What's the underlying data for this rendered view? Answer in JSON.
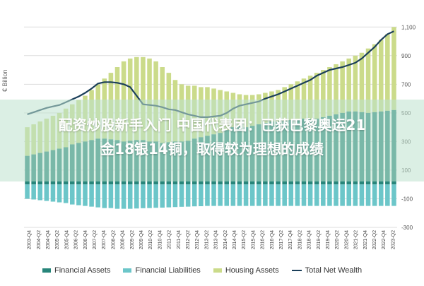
{
  "chart_data": {
    "type": "bar",
    "ylabel": "€ Billion",
    "ylim": [
      -300,
      1200
    ],
    "yticks": [
      -300,
      -100,
      100,
      300,
      500,
      700,
      900,
      1100
    ],
    "x_tick_labels": [
      "2003-Q4",
      "2004-Q2",
      "2004-Q4",
      "2005-Q2",
      "2005-Q4",
      "2006-Q2",
      "2006-Q4",
      "2007-Q2",
      "2007-Q4",
      "2008-Q2",
      "2008-Q4",
      "2009-Q2",
      "2009-Q4",
      "2010-Q2",
      "2010-Q4",
      "2011-Q2",
      "2011-Q4",
      "2012-Q2",
      "2012-Q4",
      "2013-Q2",
      "2013-Q4",
      "2014-Q2",
      "2014-Q4",
      "2015-Q2",
      "2015-Q4",
      "2016-Q2",
      "2016-Q4",
      "2017-Q2",
      "2017-Q4",
      "2018-Q2",
      "2018-Q4",
      "2019-Q2",
      "2019-Q4",
      "2020-Q2",
      "2020-Q4",
      "2021-Q2",
      "2021-Q4",
      "2022-Q2",
      "2022-Q4",
      "2023-Q2"
    ],
    "series": [
      {
        "name": "Financial Assets",
        "color": "#27857a",
        "values": [
          200,
          210,
          220,
          230,
          240,
          250,
          260,
          280,
          290,
          300,
          310,
          320,
          320,
          315,
          310,
          300,
          305,
          310,
          310,
          300,
          300,
          290,
          295,
          300,
          300,
          305,
          320,
          330,
          340,
          350,
          360,
          380,
          400,
          410,
          400,
          410,
          420,
          430,
          440,
          440,
          445,
          450,
          455,
          460,
          455,
          460,
          470,
          480,
          490,
          500,
          510,
          510,
          505,
          500,
          505,
          510,
          515,
          520
        ]
      },
      {
        "name": "Financial Liabilities",
        "color": "#6cc6c9",
        "values": [
          -100,
          -105,
          -110,
          -115,
          -120,
          -125,
          -130,
          -140,
          -145,
          -150,
          -155,
          -160,
          -165,
          -165,
          -170,
          -170,
          -170,
          -168,
          -166,
          -165,
          -163,
          -162,
          -160,
          -158,
          -156,
          -155,
          -153,
          -152,
          -150,
          -150,
          -150,
          -150,
          -150,
          -150,
          -150,
          -150,
          -150,
          -150,
          -150,
          -150,
          -150,
          -150,
          -150,
          -150,
          -150,
          -150,
          -150,
          -150,
          -150,
          -150,
          -150,
          -150,
          -150,
          -150,
          -150,
          -150,
          -150,
          -150
        ]
      },
      {
        "name": "Housing Assets",
        "color": "#cbdb8a",
        "values": [
          400,
          420,
          440,
          460,
          480,
          500,
          530,
          560,
          590,
          620,
          660,
          700,
          740,
          780,
          820,
          860,
          880,
          890,
          890,
          880,
          860,
          820,
          780,
          730,
          700,
          690,
          690,
          680,
          680,
          670,
          660,
          650,
          640,
          630,
          625,
          625,
          630,
          640,
          650,
          660,
          680,
          700,
          720,
          740,
          760,
          780,
          800,
          820,
          840,
          860,
          880,
          900,
          920,
          950,
          980,
          1010,
          1050,
          1100
        ]
      },
      {
        "name": "Total Net Wealth",
        "color": "#1b3f5a",
        "values": [
          490,
          505,
          520,
          535,
          545,
          555,
          575,
          595,
          615,
          640,
          670,
          705,
          715,
          715,
          710,
          700,
          680,
          620,
          560,
          555,
          550,
          540,
          525,
          520,
          505,
          490,
          480,
          470,
          470,
          475,
          480,
          500,
          530,
          550,
          560,
          570,
          580,
          600,
          615,
          630,
          650,
          670,
          690,
          710,
          730,
          760,
          780,
          800,
          810,
          820,
          835,
          850,
          880,
          920,
          960,
          1010,
          1050,
          1070
        ]
      }
    ]
  },
  "overlay_text_lines": [
    "配资炒股新手入门 中国代表团：已获巴黎奥运21",
    "金18银14铜，取得较为理想的成绩"
  ]
}
